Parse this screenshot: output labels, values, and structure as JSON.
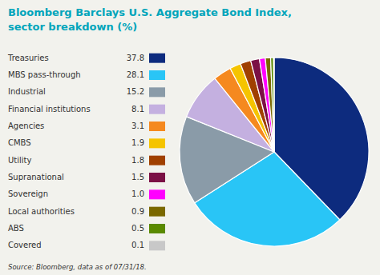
{
  "chart_data": {
    "type": "pie",
    "title": "Bloomberg Barclays U.S. Aggregate Bond Index,",
    "subtitle": "sector breakdown (%)",
    "annotations": [
      "Source: Bloomberg, data as of 07/31/18."
    ],
    "categories": [
      "Treasuries",
      "MBS pass-through",
      "Industrial",
      "Financial institutions",
      "Agencies",
      "CMBS",
      "Utility",
      "Supranational",
      "Sovereign",
      "Local authorities",
      "ABS",
      "Covered"
    ],
    "values": [
      37.8,
      28.1,
      15.2,
      8.1,
      3.1,
      1.9,
      1.8,
      1.5,
      1.0,
      0.9,
      0.5,
      0.1
    ],
    "value_labels": [
      "37.8",
      "28.1",
      "15.2",
      "8.1",
      "3.1",
      "1.9",
      "1.8",
      "1.5",
      "1.0",
      "0.9",
      "0.5",
      "0.1"
    ],
    "colors": [
      "#0d2b7e",
      "#29c5f6",
      "#8a9ba8",
      "#c4b0e0",
      "#f5891f",
      "#f5c400",
      "#a04000",
      "#7b1045",
      "#ff00ff",
      "#7a6800",
      "#5a8a00",
      "#c8c8c8"
    ],
    "legend": "left"
  }
}
